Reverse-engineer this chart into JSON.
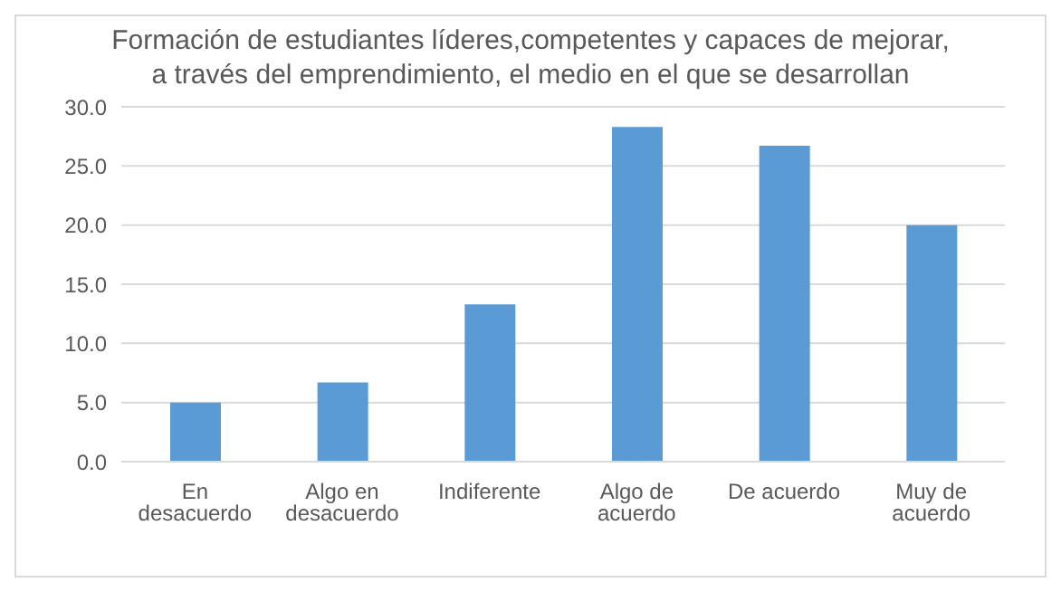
{
  "chart_data": {
    "type": "bar",
    "title": "Formación de estudiantes líderes,competentes y capaces de mejorar, a través del emprendimiento, el medio en el que se desarrollan",
    "categories": [
      "En desacuerdo",
      "Algo en desacuerdo",
      "Indiferente",
      "Algo de acuerdo",
      "De acuerdo",
      "Muy de acuerdo"
    ],
    "values": [
      5.0,
      6.7,
      13.3,
      28.3,
      26.7,
      20.0
    ],
    "color": "#5b9bd5",
    "ylim": [
      0,
      30
    ],
    "yticks": [
      {
        "value": 0,
        "label": "0.0"
      },
      {
        "value": 5,
        "label": "5.0"
      },
      {
        "value": 10,
        "label": "10.0"
      },
      {
        "value": 15,
        "label": "15.0"
      },
      {
        "value": 20,
        "label": "20.0"
      },
      {
        "value": 25,
        "label": "25.0"
      },
      {
        "value": 30,
        "label": "30.0"
      }
    ],
    "grid": "y",
    "legend": false
  }
}
